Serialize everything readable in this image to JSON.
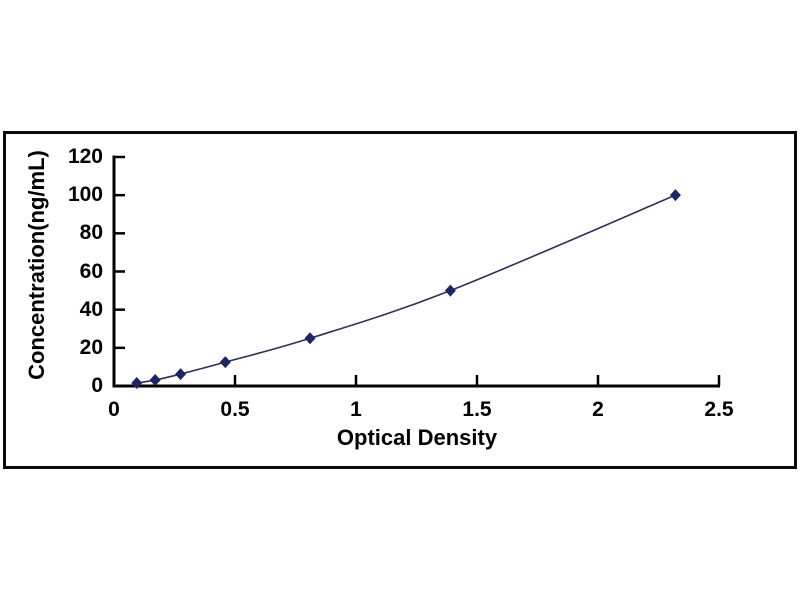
{
  "chart_data": {
    "type": "scatter",
    "title": "",
    "xlabel": "Optical Density",
    "ylabel": "Concentration(ng/mL)",
    "x": [
      0.094,
      0.17,
      0.275,
      0.46,
      0.81,
      1.39,
      2.32
    ],
    "y": [
      1.56,
      3.12,
      6.25,
      12.5,
      25,
      50,
      100
    ],
    "x_ticks": [
      0,
      0.5,
      1,
      1.5,
      2,
      2.5
    ],
    "x_tick_labels": [
      "0",
      "0.5",
      "1",
      "1.5",
      "2",
      "2.5"
    ],
    "y_ticks": [
      0,
      20,
      40,
      60,
      80,
      100,
      120
    ],
    "y_tick_labels": [
      "0",
      "20",
      "40",
      "60",
      "80",
      "100",
      "120"
    ],
    "xlim": [
      0,
      2.5
    ],
    "ylim": [
      0,
      120
    ],
    "grid": false,
    "legend": "none",
    "marker": "diamond",
    "line_style": "smooth",
    "colors": {
      "line": "#2e3156",
      "marker": "#1c2566",
      "axis": "#000000",
      "frame": "#000000",
      "background": "#ffffff",
      "text": "#000000"
    }
  }
}
